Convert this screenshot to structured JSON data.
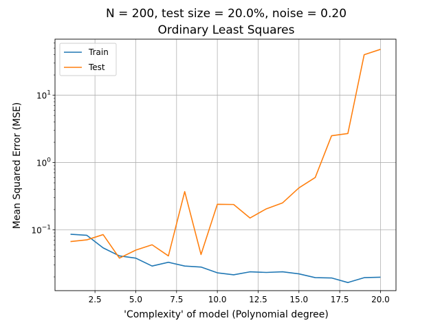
{
  "chart_data": {
    "type": "line",
    "title": "N = 200, test size = 20.0%, noise = 0.20",
    "subtitle": "Ordinary Least Squares",
    "xlabel": "'Complexity' of model (Polynomial degree)",
    "ylabel": "Mean Squared Error (MSE)",
    "x_scale": "linear",
    "y_scale": "log",
    "xlim": [
      0.05,
      20.95
    ],
    "ylim": [
      0.0125,
      68
    ],
    "x_ticks": [
      2.5,
      5.0,
      7.5,
      10.0,
      12.5,
      15.0,
      17.5,
      20.0
    ],
    "x_tick_labels": [
      "2.5",
      "5.0",
      "7.5",
      "10.0",
      "12.5",
      "15.0",
      "17.5",
      "20.0"
    ],
    "y_ticks": [
      0.1,
      1,
      10
    ],
    "y_tick_labels": [
      {
        "base": "10",
        "exp": "−1"
      },
      {
        "base": "10",
        "exp": "0"
      },
      {
        "base": "10",
        "exp": "1"
      }
    ],
    "grid": true,
    "legend_position": "top-left",
    "x": [
      1,
      2,
      3,
      4,
      5,
      6,
      7,
      8,
      9,
      10,
      11,
      12,
      13,
      14,
      15,
      16,
      17,
      18,
      19,
      20
    ],
    "series": [
      {
        "name": "Train",
        "color": "#1f77b4",
        "values": [
          0.086,
          0.083,
          0.054,
          0.041,
          0.038,
          0.029,
          0.033,
          0.029,
          0.028,
          0.023,
          0.0215,
          0.0238,
          0.0233,
          0.0238,
          0.0222,
          0.0195,
          0.0193,
          0.0165,
          0.0195,
          0.0198
        ]
      },
      {
        "name": "Test",
        "color": "#ff7f0e",
        "values": [
          0.067,
          0.071,
          0.085,
          0.038,
          0.05,
          0.06,
          0.041,
          0.37,
          0.043,
          0.24,
          0.238,
          0.15,
          0.205,
          0.252,
          0.42,
          0.6,
          2.5,
          2.7,
          40,
          48
        ]
      }
    ]
  }
}
